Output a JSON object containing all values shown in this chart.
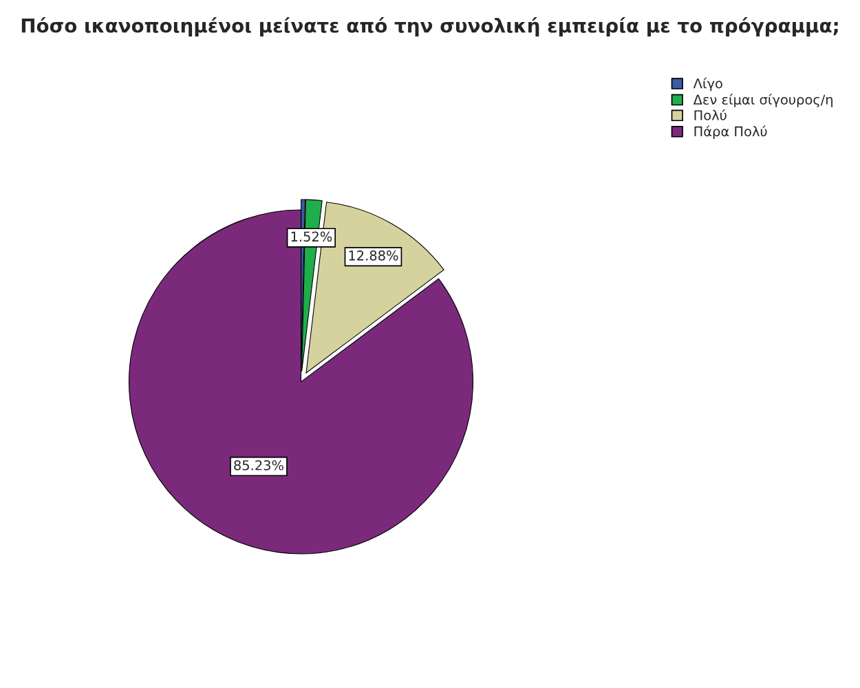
{
  "chart_data": {
    "type": "pie",
    "title": "Πόσο ικανοποιημένοι μείνατε από την συνολική εμπειρία με το πρόγραμμα;",
    "categories": [
      "Λίγο",
      "Δεν είμαι σίγουρος/η",
      "Πολύ",
      "Πάρα Πολύ"
    ],
    "values": [
      0.37,
      1.52,
      12.88,
      85.23
    ],
    "value_labels": [
      null,
      "1.52%",
      "12.88%",
      "85.23%"
    ],
    "colors": [
      "#3b5ba5",
      "#1fae4b",
      "#d6d29e",
      "#7b2a7b"
    ],
    "legend": "top right"
  }
}
